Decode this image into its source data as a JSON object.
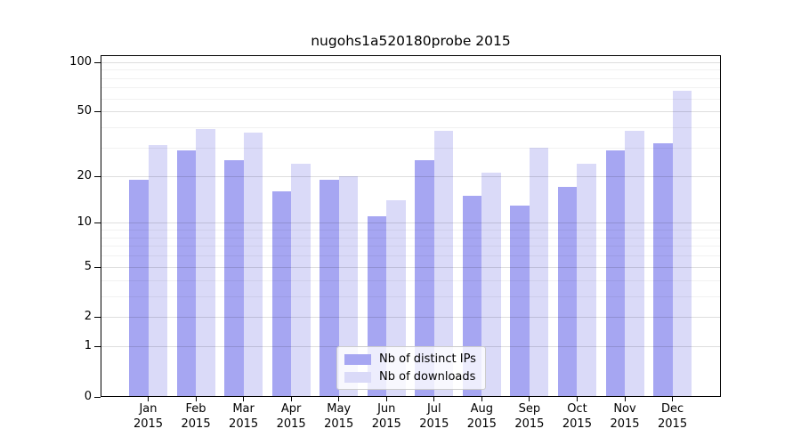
{
  "title": "nugohs1a520180probe 2015",
  "chart_data": {
    "type": "bar",
    "title": "nugohs1a520180probe 2015",
    "categories": [
      "Jan",
      "Feb",
      "Mar",
      "Apr",
      "May",
      "Jun",
      "Jul",
      "Aug",
      "Sep",
      "Oct",
      "Nov",
      "Dec"
    ],
    "category_year": "2015",
    "series": [
      {
        "name": "Nb of distinct IPs",
        "color": "#a6a6f2",
        "values": [
          19,
          29,
          25,
          16,
          19,
          11,
          25,
          15,
          13,
          17,
          29,
          32
        ]
      },
      {
        "name": "Nb of downloads",
        "color": "#dadaf8",
        "values": [
          31,
          39,
          37,
          24,
          20,
          14,
          38,
          21,
          30,
          24,
          38,
          67
        ]
      }
    ],
    "xlabel": "",
    "ylabel": "",
    "y_scale": "log1p",
    "ylim": [
      0,
      110
    ],
    "y_tick_values": [
      0,
      1,
      2,
      5,
      10,
      20,
      50,
      100
    ],
    "y_tick_labels": [
      "0",
      "1",
      "2",
      "5",
      "10",
      "20",
      "50",
      "100"
    ],
    "y_major_gridlines": [
      1,
      2,
      5,
      10,
      20,
      50,
      100
    ],
    "y_minor_gridlines": [
      3,
      4,
      6,
      7,
      8,
      9,
      30,
      40,
      60,
      70,
      80,
      90
    ],
    "grid": true,
    "legend_position": "inside-bottom-center",
    "colors": {
      "bar_distinct_ips": "#a6a6f2",
      "bar_downloads": "#dadaf8",
      "axis": "#000000",
      "grid_major": "#dedede",
      "grid_minor": "#f0f0f0",
      "background": "#ffffff"
    }
  },
  "legend": {
    "items": [
      {
        "label": "Nb of distinct IPs"
      },
      {
        "label": "Nb of downloads"
      }
    ]
  }
}
